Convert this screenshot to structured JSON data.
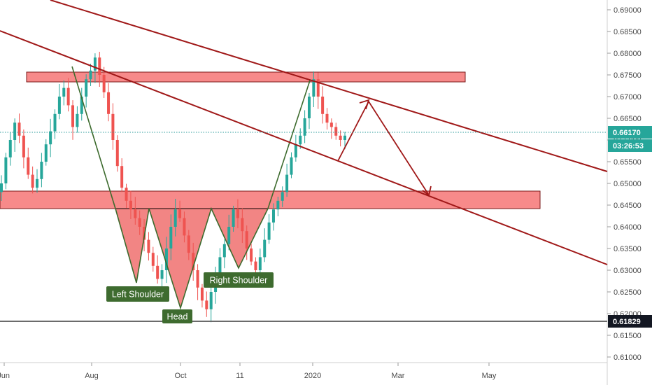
{
  "chart_data": {
    "type": "candlestick-annotated",
    "title": "",
    "xlabel": "",
    "ylabel": "",
    "ylim": [
      0.6075,
      0.6915
    ],
    "y_ticks": [
      "0.69000",
      "0.68500",
      "0.68000",
      "0.67500",
      "0.67000",
      "0.66500",
      "0.66000",
      "0.65500",
      "0.65000",
      "0.64500",
      "0.64000",
      "0.63500",
      "0.63000",
      "0.62500",
      "0.62000",
      "0.61500",
      "0.61000"
    ],
    "x_ticks": [
      "Jun",
      "Aug",
      "Oct",
      "11",
      "2020",
      "Mar",
      "May"
    ],
    "current_price": {
      "value": 0.6617,
      "label": "0.66170",
      "countdown": "03:26:53"
    },
    "support_level": {
      "value": 0.61829,
      "label": "0.61829"
    },
    "price_series": [
      0.65,
      0.656,
      0.66,
      0.664,
      0.661,
      0.656,
      0.652,
      0.649,
      0.651,
      0.655,
      0.659,
      0.662,
      0.666,
      0.67,
      0.672,
      0.668,
      0.663,
      0.666,
      0.67,
      0.674,
      0.676,
      0.679,
      0.675,
      0.671,
      0.666,
      0.66,
      0.654,
      0.649,
      0.646,
      0.644,
      0.642,
      0.64,
      0.637,
      0.634,
      0.631,
      0.628,
      0.63,
      0.635,
      0.64,
      0.644,
      0.642,
      0.638,
      0.634,
      0.63,
      0.626,
      0.623,
      0.621,
      0.625,
      0.629,
      0.633,
      0.636,
      0.64,
      0.644,
      0.642,
      0.639,
      0.635,
      0.632,
      0.63,
      0.633,
      0.637,
      0.641,
      0.644,
      0.646,
      0.648,
      0.652,
      0.656,
      0.659,
      0.661,
      0.665,
      0.67,
      0.674,
      0.67,
      0.666,
      0.664,
      0.663,
      0.661,
      0.66,
      0.661
    ],
    "zones": [
      {
        "name": "resistance-zone",
        "y_top": 0.676,
        "y_bottom": 0.674
      },
      {
        "name": "neckline-zone",
        "y_top": 0.649,
        "y_bottom": 0.6448
      }
    ],
    "pattern_labels": {
      "left_shoulder": "Left Shoulder",
      "head": "Head",
      "right_shoulder": "Right Shoulder"
    },
    "colors": {
      "channel": "#a01818",
      "pattern_fill": "#f0706e",
      "zone_fill": "#f78a8a",
      "zone_border": "#7a1a1a",
      "candle_up": "#26a69a",
      "candle_down": "#ef5350",
      "pattern_line": "#3d6b2e",
      "label_bg": "#3e6b2f",
      "support_tag": "#131722",
      "price_tag": "#26a69a",
      "current_line": "#2d9c9c"
    }
  }
}
